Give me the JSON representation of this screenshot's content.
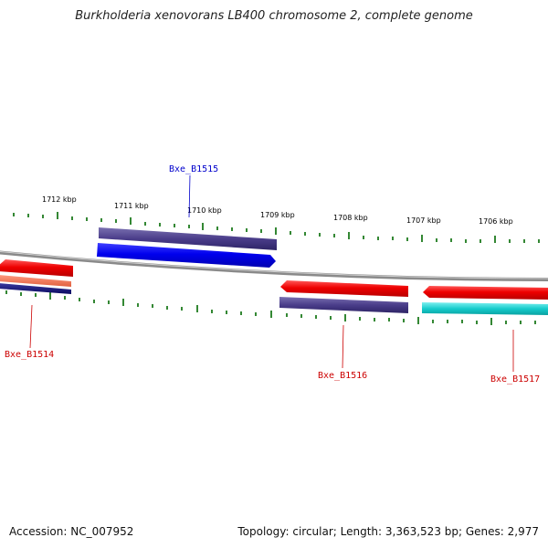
{
  "title": "Burkholderia xenovorans LB400 chromosome 2, complete genome",
  "footer": {
    "accession": "Accession: NC_007952",
    "topology": "Topology: circular; Length: 3,363,523 bp; Genes: 2,977"
  },
  "scale": {
    "unit": "kbp",
    "labels": [
      "1712 kbp",
      "1711 kbp",
      "1710 kbp",
      "1709 kbp",
      "1708 kbp",
      "1707 kbp",
      "1706 kbp"
    ]
  },
  "colors": {
    "backbone": "#8a8a8a",
    "ticks": "#1e7a1e",
    "label_red": "#cc0000",
    "label_blue": "#0000cc"
  },
  "genes": [
    {
      "name": "Bxe_B1515",
      "label_color": "#0000cc"
    },
    {
      "name": "Bxe_B1514",
      "label_color": "#cc0000"
    },
    {
      "name": "Bxe_B1516",
      "label_color": "#cc0000"
    },
    {
      "name": "Bxe_B1517",
      "label_color": "#cc0000"
    }
  ]
}
